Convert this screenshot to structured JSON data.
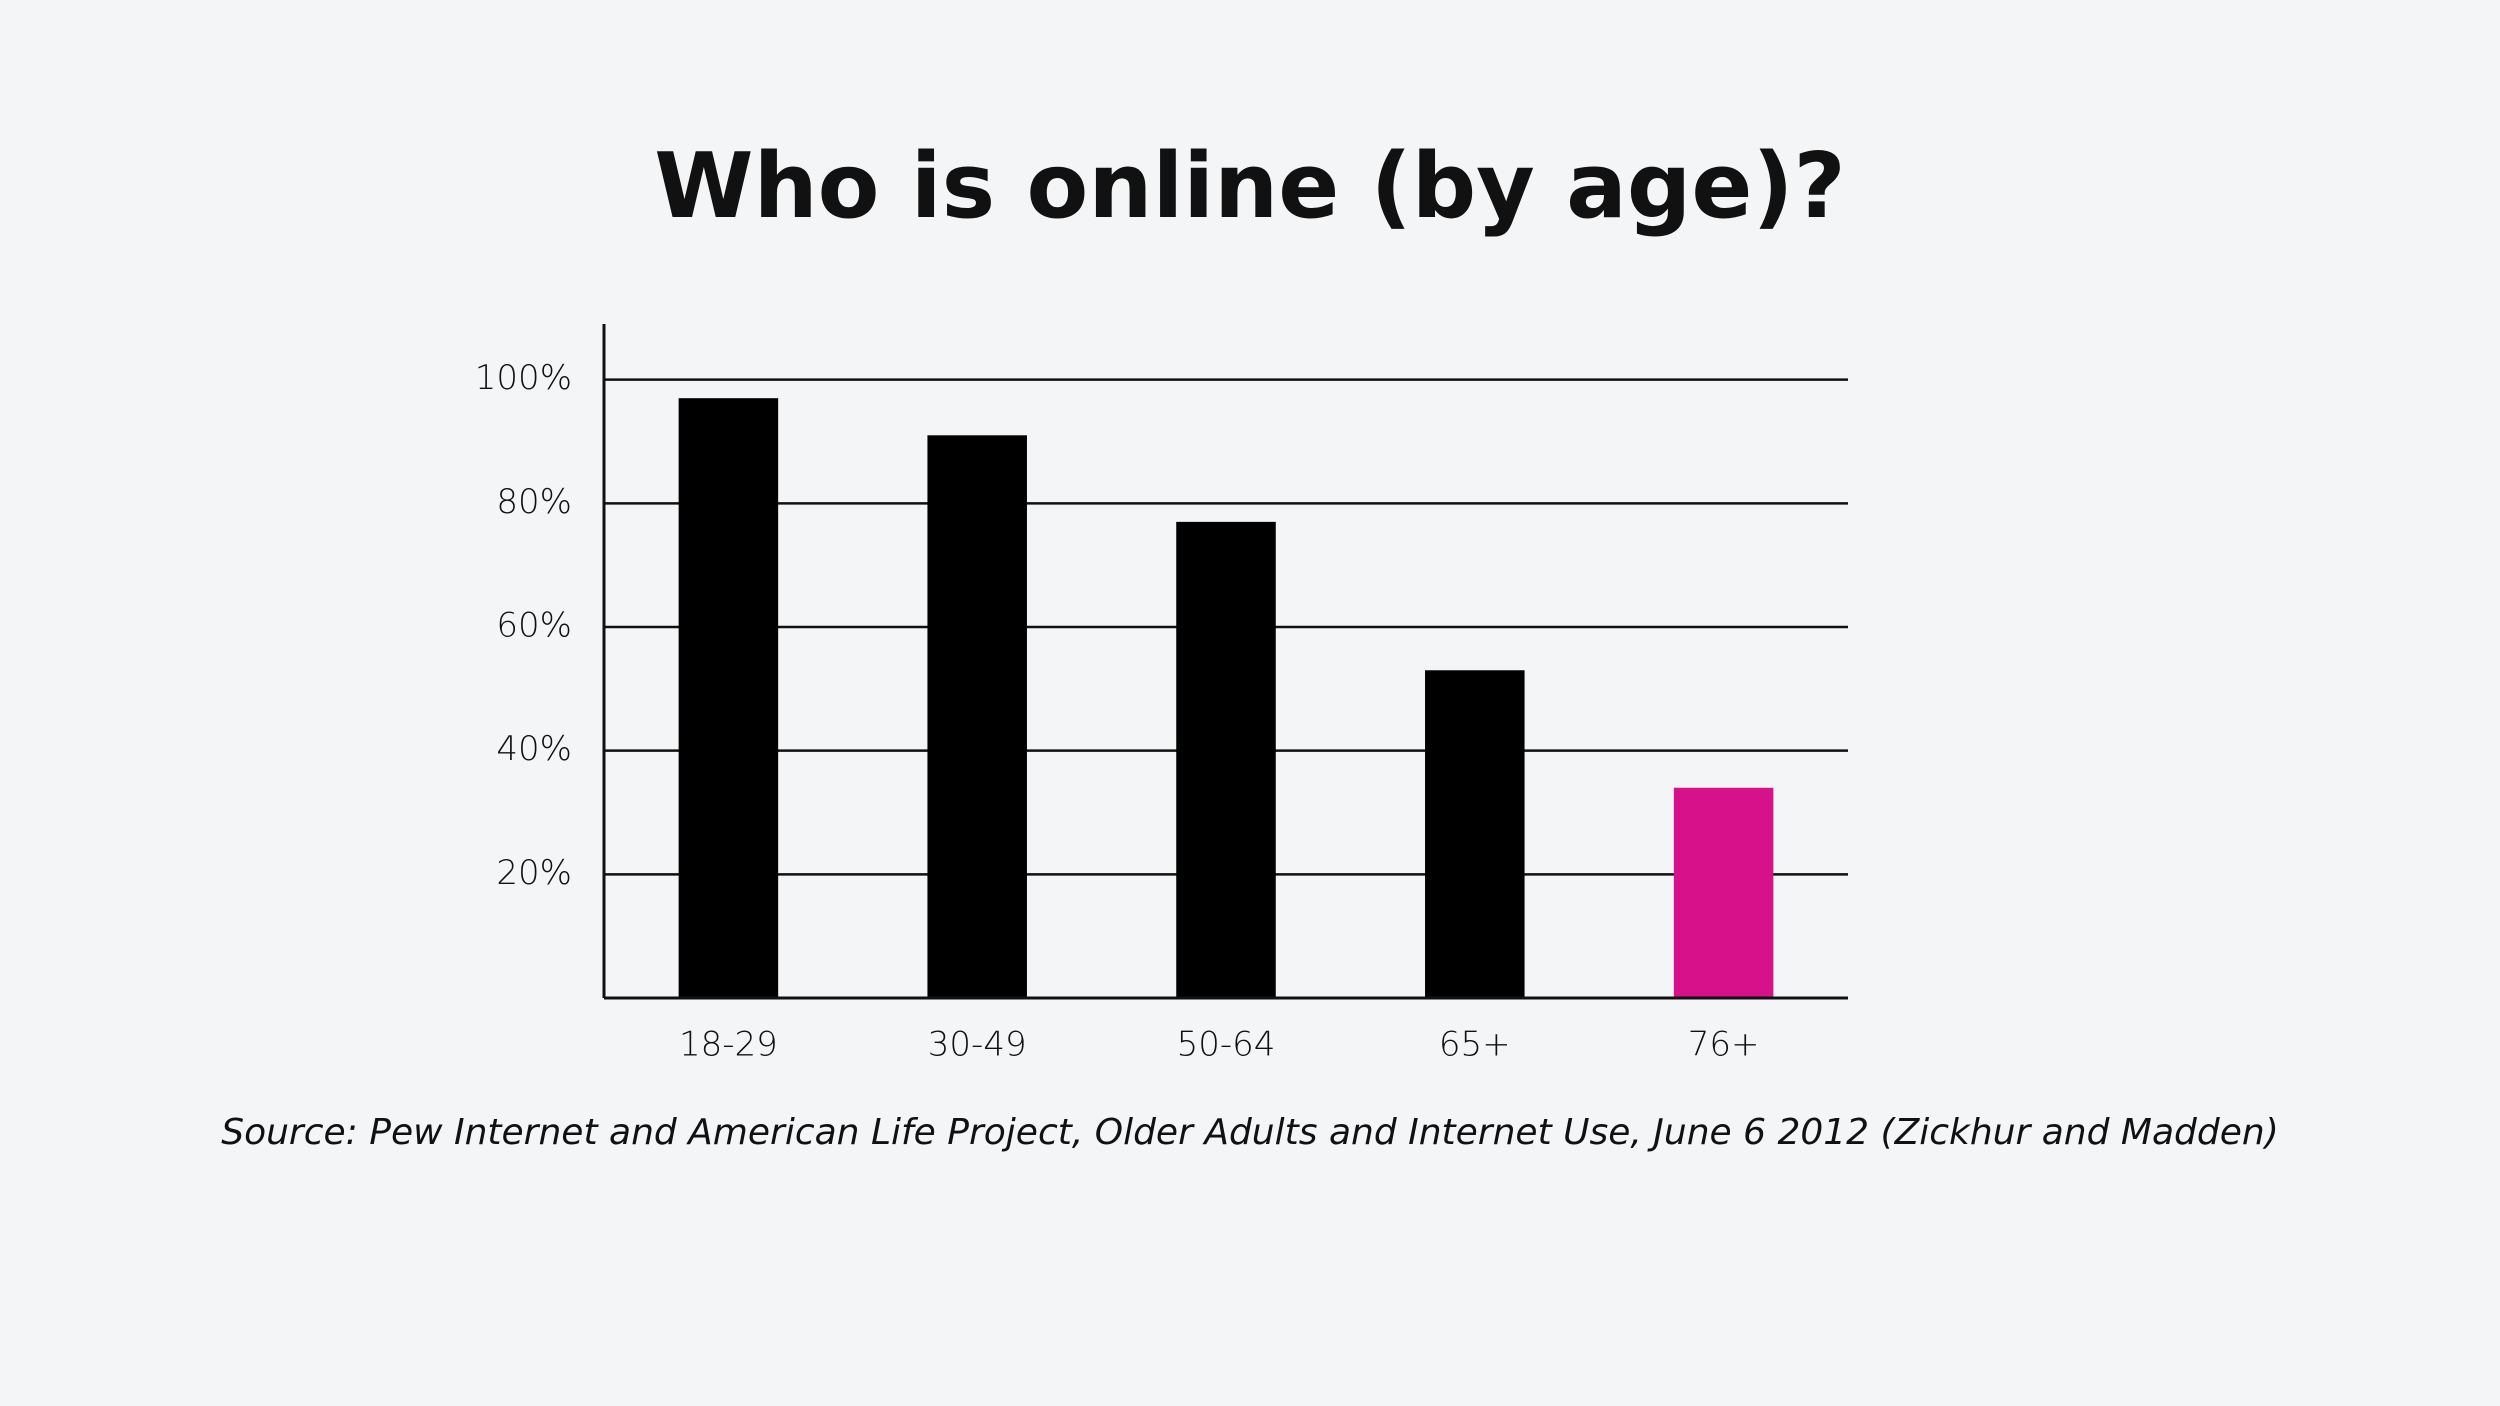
{
  "chart_data": {
    "type": "bar",
    "title": "Who is online (by age)?",
    "categories": [
      "18-29",
      "30-49",
      "50-64",
      "65+",
      "76+"
    ],
    "values": [
      97,
      91,
      77,
      53,
      34
    ],
    "colors": [
      "#000000",
      "#000000",
      "#000000",
      "#000000",
      "#d6118a"
    ],
    "ylim": [
      0,
      109
    ],
    "yticks": [
      {
        "value": 20,
        "label": "20%"
      },
      {
        "value": 40,
        "label": "40%"
      },
      {
        "value": 60,
        "label": "60%"
      },
      {
        "value": 80,
        "label": "80%"
      },
      {
        "value": 100,
        "label": "100%"
      }
    ],
    "grid": true,
    "source": "Source: Pew Internet and American Life Project, Older Adults and Internet Use, June 6 2012 (Zickhur and Madden)"
  }
}
